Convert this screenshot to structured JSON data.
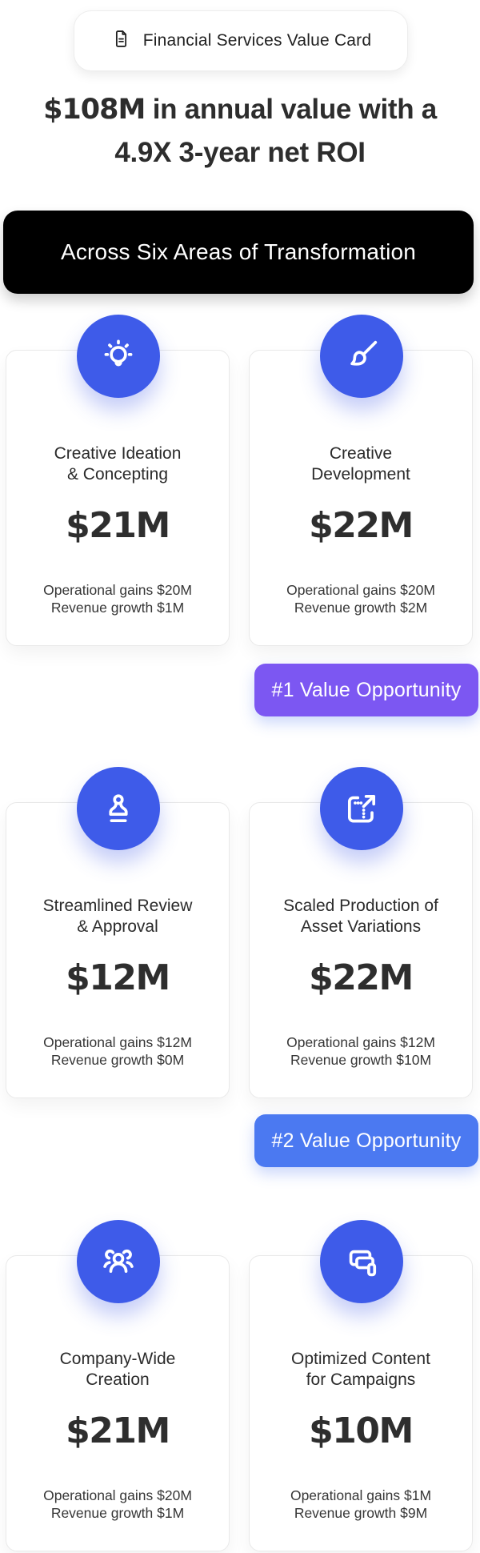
{
  "header_badge": {
    "icon": "document-icon",
    "label": "Financial Services Value Card"
  },
  "headline": {
    "strong": "$108M",
    "line1_rest": " in annual value with a",
    "line2": "4.9X 3-year net ROI"
  },
  "banner": {
    "label": "Across Six Areas of Transformation",
    "bg": "#000000",
    "text_color": "#ffffff"
  },
  "colors": {
    "icon_circle": "#3E5BE9",
    "value_badge_1": "#7C57F2",
    "value_badge_2": "#4B79F1",
    "heading_text": "#2D2D2D"
  },
  "cards": [
    {
      "icon": "lightbulb-icon",
      "title_line1": "Creative Ideation",
      "title_line2": "& Concepting",
      "value": "$21M",
      "detail_line1": "Operational gains $20M",
      "detail_line2": "Revenue growth $1M"
    },
    {
      "icon": "paintbrush-icon",
      "title_line1": "Creative",
      "title_line2": "Development",
      "value": "$22M",
      "detail_line1": "Operational gains $20M",
      "detail_line2": "Revenue growth $2M"
    },
    {
      "icon": "stamp-icon",
      "title_line1": "Streamlined Review",
      "title_line2": "& Approval",
      "value": "$12M",
      "detail_line1": "Operational gains $12M",
      "detail_line2": "Revenue growth $0M"
    },
    {
      "icon": "scale-export-icon",
      "title_line1": "Scaled Production of",
      "title_line2": "Asset Variations",
      "value": "$22M",
      "detail_line1": "Operational gains $12M",
      "detail_line2": "Revenue growth $10M"
    },
    {
      "icon": "people-group-icon",
      "title_line1": "Company-Wide",
      "title_line2": "Creation",
      "value": "$21M",
      "detail_line1": "Operational gains $20M",
      "detail_line2": "Revenue growth $1M"
    },
    {
      "icon": "screens-icon",
      "title_line1": "Optimized Content",
      "title_line2": "for Campaigns",
      "value": "$10M",
      "detail_line1": "Operational gains $1M",
      "detail_line2": "Revenue growth $9M"
    }
  ],
  "value_opportunity_badges": [
    {
      "label": "#1 Value Opportunity",
      "color": "#7C57F2"
    },
    {
      "label": "#2 Value Opportunity",
      "color": "#4B79F1"
    }
  ]
}
